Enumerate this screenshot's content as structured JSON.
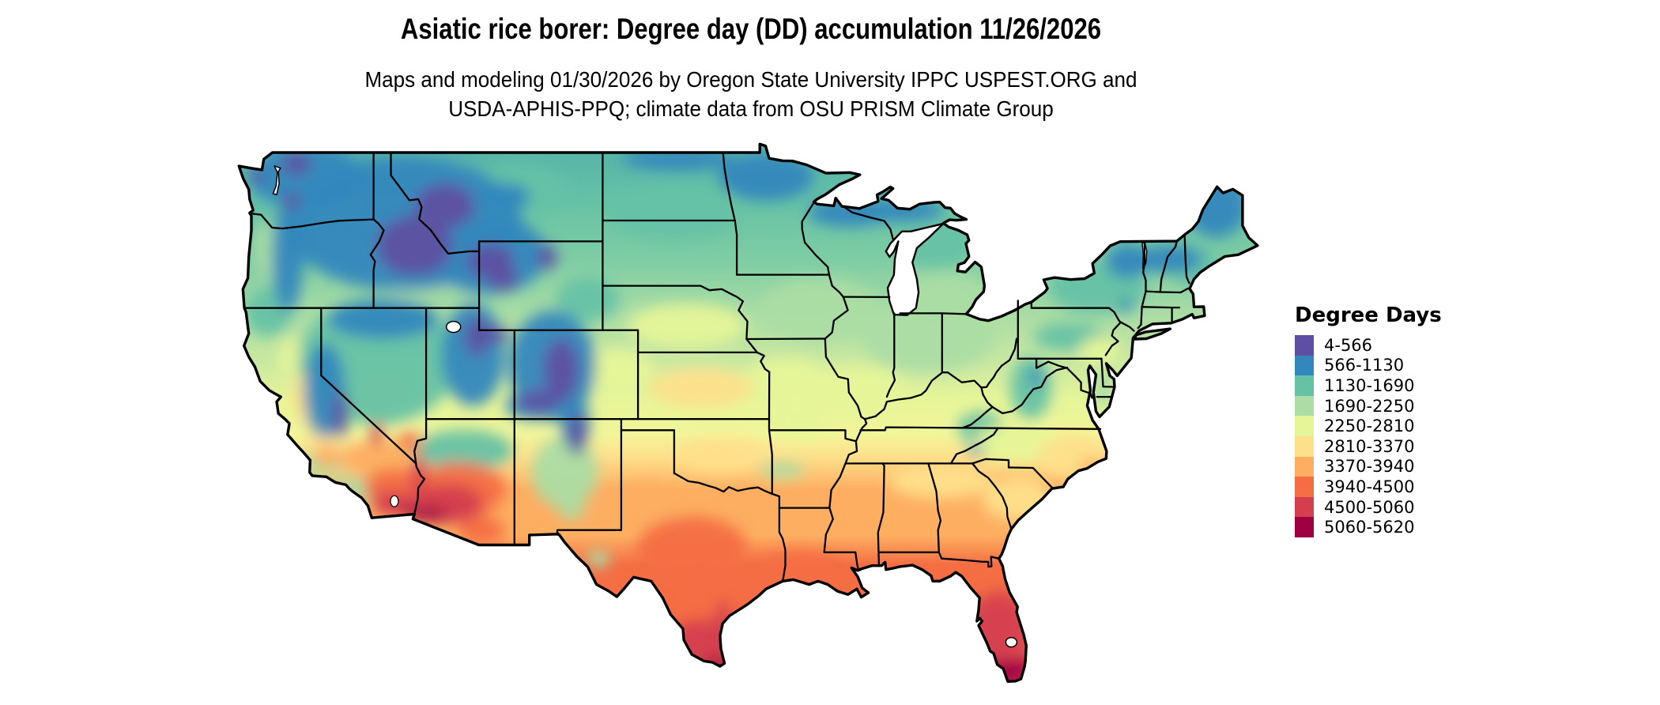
{
  "title": "Asiatic rice borer: Degree day (DD) accumulation 11/26/2026",
  "subtitle_line1": "Maps and modeling 01/30/2026 by Oregon State University IPPC USPEST.ORG and",
  "subtitle_line2": "USDA-APHIS-PPQ; climate data from OSU PRISM Climate Group",
  "legend": {
    "title": "Degree Days",
    "items": [
      {
        "label": "4-566",
        "color": "#5e4fa2"
      },
      {
        "label": "566-1130",
        "color": "#3288bd"
      },
      {
        "label": "1130-1690",
        "color": "#66c2a5"
      },
      {
        "label": "1690-2250",
        "color": "#abdda4"
      },
      {
        "label": "2250-2810",
        "color": "#e6f598"
      },
      {
        "label": "2810-3370",
        "color": "#fee08b"
      },
      {
        "label": "3370-3940",
        "color": "#fdae61"
      },
      {
        "label": "3940-4500",
        "color": "#f46d43"
      },
      {
        "label": "4500-5060",
        "color": "#d53e4f"
      },
      {
        "label": "5060-5620",
        "color": "#9e0142"
      }
    ]
  },
  "map": {
    "outline_color": "#000000",
    "water_color": "#ffffff",
    "base_ramp": [
      [
        182,
        "#54b4ab"
      ],
      [
        215,
        "#5cb9a7"
      ],
      [
        255,
        "#66c2a5"
      ],
      [
        330,
        "#7fcda4"
      ],
      [
        400,
        "#abdda4"
      ],
      [
        468,
        "#cfeaa0"
      ],
      [
        505,
        "#e6f598"
      ],
      [
        550,
        "#f2f59a"
      ],
      [
        578,
        "#fee08b"
      ],
      [
        620,
        "#fdae61"
      ],
      [
        678,
        "#fdae61"
      ],
      [
        715,
        "#f46d43"
      ],
      [
        798,
        "#f46d43"
      ],
      [
        836,
        "#d53e4f"
      ],
      [
        862,
        "#c0294a"
      ],
      [
        874,
        "#9e0142"
      ],
      [
        884,
        "#9e0142"
      ]
    ],
    "heat_blobs": [
      [
        -116.8,
        39.6,
        100,
        80,
        2
      ],
      [
        -123.4,
        46.3,
        26,
        85,
        2
      ],
      [
        -123.0,
        41.8,
        30,
        30,
        2
      ],
      [
        -111.9,
        35.6,
        62,
        26,
        2
      ],
      [
        -108.8,
        47.3,
        60,
        32,
        2
      ],
      [
        -100.0,
        46.3,
        85,
        35,
        2
      ],
      [
        -85.2,
        44.9,
        48,
        30,
        2
      ],
      [
        -76.0,
        42.9,
        62,
        33,
        2
      ],
      [
        -70.5,
        43.9,
        30,
        28,
        2
      ],
      [
        -79.8,
        38.4,
        26,
        40,
        2
      ],
      [
        -82.6,
        36.6,
        30,
        20,
        2
      ],
      [
        -77.6,
        40.7,
        45,
        18,
        2
      ],
      [
        -104.9,
        42.4,
        40,
        28,
        2
      ],
      [
        -123.2,
        44.6,
        15,
        38,
        3
      ],
      [
        -119.3,
        46.8,
        34,
        20,
        3
      ],
      [
        -113.8,
        42.9,
        62,
        14,
        3
      ],
      [
        -106.2,
        34.6,
        42,
        45,
        3
      ],
      [
        -91.8,
        41.9,
        75,
        40,
        3
      ],
      [
        -85.6,
        40.7,
        85,
        45,
        3
      ],
      [
        -84.6,
        42.7,
        55,
        25,
        3
      ],
      [
        -75.7,
        38.4,
        14,
        28,
        3
      ],
      [
        -93.9,
        34.7,
        28,
        10,
        3
      ],
      [
        -104.3,
        30.7,
        15,
        11,
        3
      ],
      [
        -105.8,
        32.9,
        16,
        12,
        3
      ],
      [
        -117.8,
        33.8,
        40,
        16,
        3
      ],
      [
        -120.3,
        34.9,
        40,
        15,
        3
      ],
      [
        -103.2,
        39.2,
        45,
        28,
        4
      ],
      [
        -89.8,
        38.4,
        60,
        28,
        4
      ],
      [
        -93.6,
        38.7,
        55,
        30,
        4
      ],
      [
        -99.3,
        41.2,
        75,
        28,
        4
      ],
      [
        -80.6,
        35.9,
        55,
        25,
        4
      ],
      [
        -75.9,
        40.05,
        26,
        18,
        4
      ],
      [
        -92.9,
        36.9,
        38,
        22,
        4
      ],
      [
        -121.8,
        39.8,
        13,
        26,
        4
      ],
      [
        -98.5,
        38.4,
        65,
        25,
        5
      ],
      [
        -97.4,
        35.4,
        55,
        22,
        5
      ],
      [
        -77.4,
        35.3,
        45,
        28,
        5
      ],
      [
        -80.3,
        33.4,
        50,
        28,
        5
      ],
      [
        -84.9,
        34.2,
        65,
        22,
        5
      ],
      [
        -121.0,
        38.0,
        15,
        30,
        5
      ],
      [
        -119.9,
        36.3,
        20,
        32,
        5
      ],
      [
        -115.3,
        45.8,
        150,
        85,
        1
      ],
      [
        -120.9,
        47.9,
        75,
        40,
        1
      ],
      [
        -121.9,
        44.3,
        20,
        70,
        1
      ],
      [
        -119.8,
        38.3,
        26,
        60,
        1
      ],
      [
        -110.6,
        44.4,
        75,
        50,
        1
      ],
      [
        -106.9,
        39.4,
        55,
        70,
        1
      ],
      [
        -111.4,
        39.9,
        40,
        65,
        1
      ],
      [
        -116.5,
        41.5,
        70,
        25,
        1
      ],
      [
        -94.8,
        47.9,
        60,
        30,
        1
      ],
      [
        -90.1,
        46.3,
        52,
        18,
        1
      ],
      [
        -87.2,
        46.4,
        55,
        15,
        1
      ],
      [
        -99.8,
        48.7,
        70,
        14,
        1
      ],
      [
        -69.3,
        46.6,
        38,
        40,
        1
      ],
      [
        -71.9,
        44.2,
        40,
        18,
        1
      ],
      [
        -74.3,
        44.1,
        28,
        22,
        1
      ],
      [
        -105.6,
        36.8,
        18,
        35,
        1
      ],
      [
        -108.0,
        37.6,
        35,
        18,
        1
      ],
      [
        -109.5,
        47.0,
        30,
        18,
        1
      ],
      [
        -79.5,
        38.9,
        9,
        11,
        1
      ],
      [
        -82.9,
        35.6,
        11,
        6,
        1
      ],
      [
        -74.4,
        42.1,
        10,
        8,
        1
      ],
      [
        -114.7,
        44.8,
        48,
        38,
        0
      ],
      [
        -113.0,
        46.6,
        38,
        28,
        0
      ],
      [
        -121.4,
        48.5,
        18,
        14,
        0
      ],
      [
        -121.7,
        46.8,
        10,
        11,
        0
      ],
      [
        -123.7,
        47.9,
        10,
        8,
        0
      ],
      [
        -110.4,
        44.1,
        30,
        22,
        0
      ],
      [
        -109.7,
        43.3,
        20,
        14,
        0
      ],
      [
        -107.2,
        44.3,
        12,
        16,
        0
      ],
      [
        -106.4,
        39.2,
        22,
        40,
        0
      ],
      [
        -107.7,
        37.8,
        26,
        14,
        0
      ],
      [
        -111.2,
        40.7,
        14,
        25,
        0
      ],
      [
        -110.4,
        40.8,
        24,
        10,
        0
      ],
      [
        -105.5,
        36.3,
        11,
        26,
        0
      ],
      [
        -118.9,
        37.2,
        10,
        30,
        0
      ],
      [
        -119.7,
        35.3,
        16,
        15,
        6
      ],
      [
        -117.0,
        35.2,
        45,
        22,
        6
      ],
      [
        -109.8,
        32.8,
        30,
        20,
        6
      ],
      [
        -102.0,
        33.0,
        55,
        30,
        6
      ],
      [
        -78.0,
        33.9,
        26,
        10,
        6
      ],
      [
        -76.2,
        34.9,
        22,
        8,
        6
      ],
      [
        -115.8,
        33.9,
        40,
        25,
        7
      ],
      [
        -115.0,
        36.0,
        16,
        11,
        7
      ],
      [
        -112.2,
        33.8,
        60,
        35,
        7
      ],
      [
        -110.9,
        32.0,
        30,
        18,
        7
      ],
      [
        -99.0,
        31.2,
        70,
        40,
        7
      ],
      [
        -97.0,
        28.8,
        50,
        35,
        7
      ],
      [
        -93.0,
        30.3,
        60,
        20,
        7
      ],
      [
        -115.9,
        33.2,
        28,
        16,
        8
      ],
      [
        -116.85,
        36.3,
        8,
        16,
        8
      ],
      [
        -114.5,
        34.5,
        9,
        28,
        8
      ],
      [
        -112.8,
        33.2,
        45,
        25,
        8
      ],
      [
        -98.3,
        27.0,
        45,
        28,
        8
      ],
      [
        -97.2,
        27.8,
        10,
        30,
        8
      ],
      [
        -81.6,
        27.7,
        38,
        42,
        8
      ],
      [
        -114.9,
        32.75,
        14,
        7,
        9
      ],
      [
        -113.9,
        32.7,
        26,
        9,
        9
      ],
      [
        -97.6,
        26.0,
        16,
        7,
        9
      ],
      [
        -81.05,
        25.7,
        26,
        13,
        9
      ],
      [
        -81.3,
        24.73,
        26,
        4,
        9
      ]
    ]
  }
}
